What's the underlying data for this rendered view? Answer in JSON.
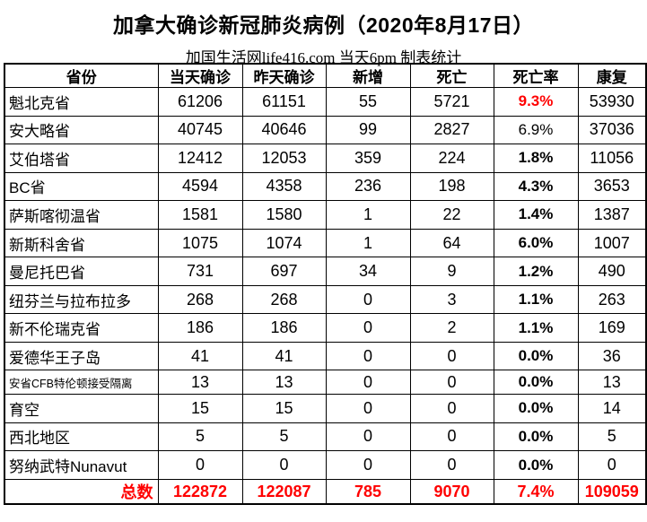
{
  "chart_data": {
    "type": "table",
    "title": "加拿大确诊新冠肺炎病例（2020年8月17日）",
    "subtitle": "加国生活网life416.com 当天6pm 制表统计",
    "columns": [
      "省份",
      "当天确诊",
      "昨天确诊",
      "新增",
      "死亡",
      "死亡率",
      "康复"
    ],
    "rows": [
      {
        "province": "魁北克省",
        "today_confirmed": "61206",
        "yesterday_confirmed": "61151",
        "new_cases": "55",
        "deaths": "5721",
        "death_rate": "9.3%",
        "death_rate_style": "red-bold",
        "recovered": "53930"
      },
      {
        "province": "安大略省",
        "today_confirmed": "40745",
        "yesterday_confirmed": "40646",
        "new_cases": "99",
        "deaths": "2827",
        "death_rate": "6.9%",
        "death_rate_style": "regular",
        "recovered": "37036"
      },
      {
        "province": "艾伯塔省",
        "today_confirmed": "12412",
        "yesterday_confirmed": "12053",
        "new_cases": "359",
        "deaths": "224",
        "death_rate": "1.8%",
        "death_rate_style": "bold",
        "recovered": "11056"
      },
      {
        "province": "BC省",
        "today_confirmed": "4594",
        "yesterday_confirmed": "4358",
        "new_cases": "236",
        "deaths": "198",
        "death_rate": "4.3%",
        "death_rate_style": "bold",
        "recovered": "3653"
      },
      {
        "province": "萨斯喀彻温省",
        "today_confirmed": "1581",
        "yesterday_confirmed": "1580",
        "new_cases": "1",
        "deaths": "22",
        "death_rate": "1.4%",
        "death_rate_style": "bold",
        "recovered": "1387"
      },
      {
        "province": "新斯科舍省",
        "today_confirmed": "1075",
        "yesterday_confirmed": "1074",
        "new_cases": "1",
        "deaths": "64",
        "death_rate": "6.0%",
        "death_rate_style": "bold",
        "recovered": "1007"
      },
      {
        "province": "曼尼托巴省",
        "today_confirmed": "731",
        "yesterday_confirmed": "697",
        "new_cases": "34",
        "deaths": "9",
        "death_rate": "1.2%",
        "death_rate_style": "bold",
        "recovered": "490"
      },
      {
        "province": "纽芬兰与拉布拉多",
        "today_confirmed": "268",
        "yesterday_confirmed": "268",
        "new_cases": "0",
        "deaths": "3",
        "death_rate": "1.1%",
        "death_rate_style": "bold",
        "recovered": "263"
      },
      {
        "province": "新不伦瑞克省",
        "today_confirmed": "186",
        "yesterday_confirmed": "186",
        "new_cases": "0",
        "deaths": "2",
        "death_rate": "1.1%",
        "death_rate_style": "bold",
        "recovered": "169"
      },
      {
        "province": "爱德华王子岛",
        "today_confirmed": "41",
        "yesterday_confirmed": "41",
        "new_cases": "0",
        "deaths": "0",
        "death_rate": "0.0%",
        "death_rate_style": "bold",
        "recovered": "36"
      },
      {
        "province": "安省CFB特伦顿接受隔离",
        "province_small_font": true,
        "today_confirmed": "13",
        "yesterday_confirmed": "13",
        "new_cases": "0",
        "deaths": "0",
        "death_rate": "0.0%",
        "death_rate_style": "bold",
        "recovered": "13"
      },
      {
        "province": "育空",
        "today_confirmed": "15",
        "yesterday_confirmed": "15",
        "new_cases": "0",
        "deaths": "0",
        "death_rate": "0.0%",
        "death_rate_style": "bold",
        "recovered": "14"
      },
      {
        "province": "西北地区",
        "today_confirmed": "5",
        "yesterday_confirmed": "5",
        "new_cases": "0",
        "deaths": "0",
        "death_rate": "0.0%",
        "death_rate_style": "bold",
        "recovered": "5"
      },
      {
        "province": "努纳武特Nunavut",
        "today_confirmed": "0",
        "yesterday_confirmed": "0",
        "new_cases": "0",
        "deaths": "0",
        "death_rate": "0.0%",
        "death_rate_style": "bold",
        "recovered": "0"
      }
    ],
    "total": {
      "label": "总数",
      "today_confirmed": "122872",
      "yesterday_confirmed": "122087",
      "new_cases": "785",
      "deaths": "9070",
      "death_rate": "7.4%",
      "recovered": "109059"
    }
  },
  "colors": {
    "highlight_red": "#FF0000",
    "text_black": "#000000",
    "border_black": "#000000",
    "background_white": "#FFFFFF"
  }
}
